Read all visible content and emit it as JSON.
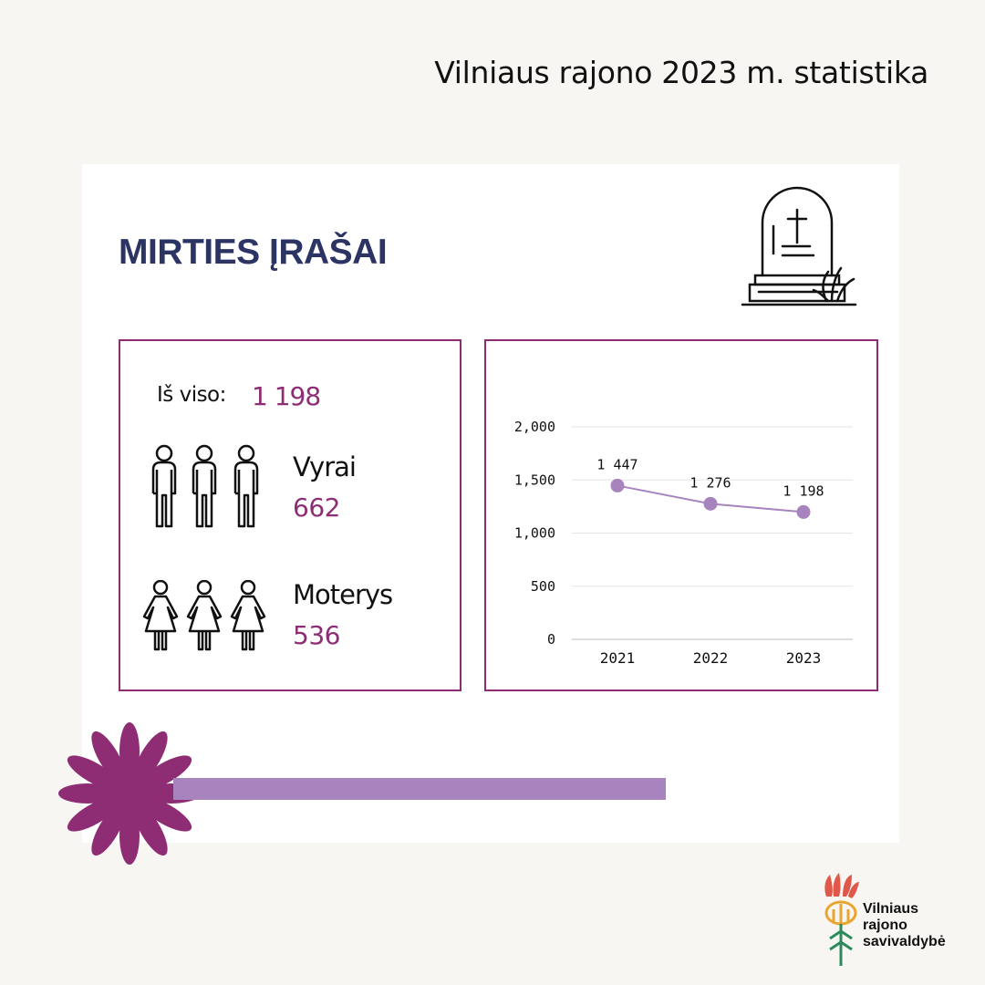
{
  "header": {
    "title": "Vilniaus rajono 2023 m. statistika"
  },
  "section": {
    "title": "MIRTIES ĮRAŠAI",
    "icon": "gravestone-icon"
  },
  "summary": {
    "total_label": "Iš viso:",
    "total_value": "1 198",
    "men": {
      "label": "Vyrai",
      "value": "662",
      "icon": "men-icon"
    },
    "women": {
      "label": "Moterys",
      "value": "536",
      "icon": "women-icon"
    }
  },
  "chart_data": {
    "type": "line",
    "categories": [
      "2021",
      "2022",
      "2023"
    ],
    "series": [
      {
        "values": [
          1447,
          1276,
          1198
        ],
        "labels": [
          "1 447",
          "1 276",
          "1 198"
        ]
      }
    ],
    "yticks": [
      "0",
      "500",
      "1,000",
      "1,500",
      "2,000"
    ],
    "ylim": [
      0,
      2000
    ],
    "grid": true,
    "color": "#a784bd"
  },
  "logo": {
    "lines": [
      "Vilniaus",
      "rajono",
      "savivaldybė"
    ]
  },
  "colors": {
    "accent": "#8f2d74",
    "title": "#2b3462",
    "lavender": "#a784bd",
    "background": "#f7f6f2"
  }
}
